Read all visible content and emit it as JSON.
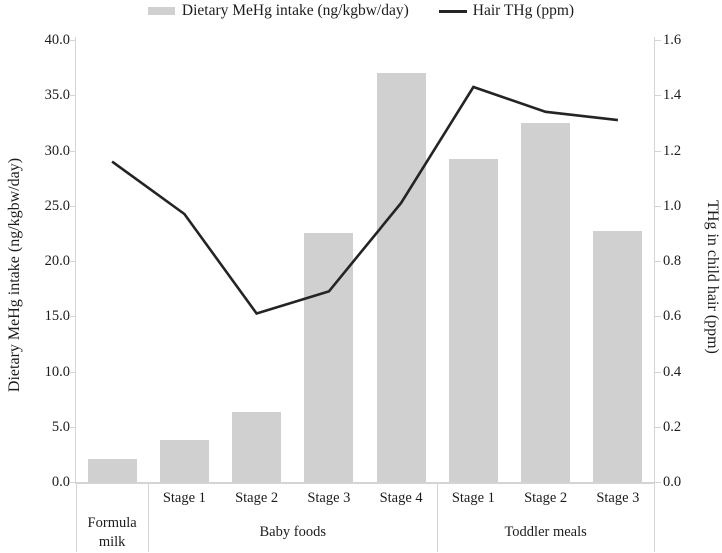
{
  "chart_data": {
    "type": "combo-bar-line",
    "title": "",
    "categories": [
      "Formula milk",
      "Stage 1",
      "Stage 2",
      "Stage 3",
      "Stage 4",
      "Stage 1",
      "Stage 2",
      "Stage 3"
    ],
    "x_axis": {
      "stage_labels": [
        "",
        "Stage 1",
        "Stage 2",
        "Stage 3",
        "Stage 4",
        "Stage 1",
        "Stage 2",
        "Stage 3"
      ],
      "groups": [
        {
          "label": "Formula milk",
          "start": 0,
          "end": 0
        },
        {
          "label": "Baby foods",
          "start": 1,
          "end": 4
        },
        {
          "label": "Toddler meals",
          "start": 5,
          "end": 7
        }
      ]
    },
    "series": [
      {
        "name": "Dietary MeHg intake (ng/kgbw/day)",
        "type": "bar",
        "axis": "left",
        "color": "#d1d0d0",
        "values": [
          2.1,
          3.8,
          6.3,
          22.5,
          37.0,
          29.2,
          32.5,
          22.7
        ]
      },
      {
        "name": "Hair THg (ppm)",
        "type": "line",
        "axis": "right",
        "color": "#272324",
        "values": [
          1.16,
          0.97,
          0.61,
          0.69,
          1.01,
          1.43,
          1.34,
          1.31
        ]
      }
    ],
    "left_axis": {
      "label": "Dietary MeHg intake (ng/kgbw/day)",
      "min": 0.0,
      "max": 40.0,
      "step": 5.0,
      "tick_labels": [
        "40.0",
        "35.0",
        "30.0",
        "25.0",
        "20.0",
        "15.0",
        "10.0",
        "5.0",
        "0.0"
      ]
    },
    "right_axis": {
      "label": "THg in child hair (ppm)",
      "min": 0.0,
      "max": 1.6,
      "step": 0.2,
      "tick_labels": [
        "1.6",
        "1.4",
        "1.2",
        "1.0",
        "0.8",
        "0.6",
        "0.4",
        "0.2",
        "0.0"
      ]
    },
    "grid": false,
    "legend_position": "top",
    "axis_color": "#d8d3d3",
    "text_color": "#1c1c1c"
  }
}
